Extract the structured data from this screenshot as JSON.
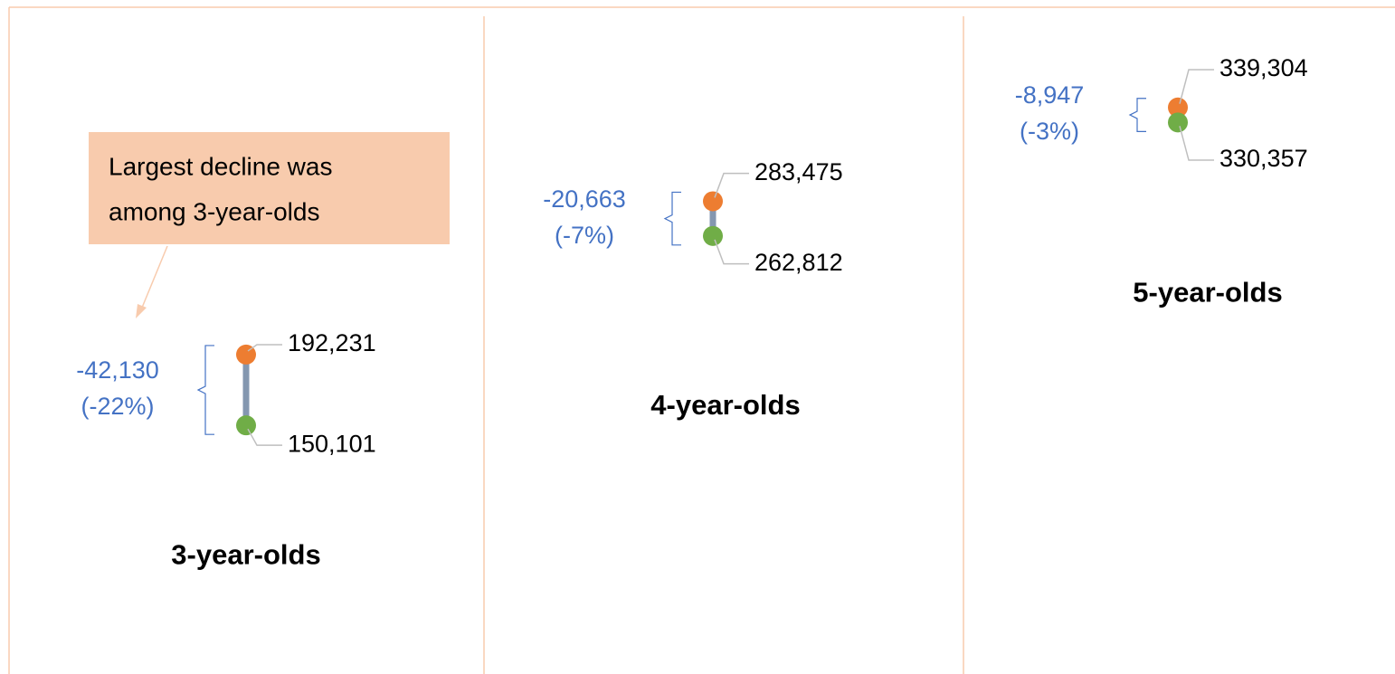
{
  "chart_data": {
    "type": "dumbbell",
    "categories": [
      "3-year-olds",
      "4-year-olds",
      "5-year-olds"
    ],
    "series": [
      {
        "color": "#ed7d31",
        "values": [
          192231,
          283475,
          339304
        ],
        "value_labels": [
          "192,231",
          "283,475",
          "339,304"
        ]
      },
      {
        "color": "#70ad47",
        "values": [
          150101,
          262812,
          330357
        ],
        "value_labels": [
          "150,101",
          "262,812",
          "330,357"
        ]
      }
    ],
    "changes": {
      "values": [
        -42130,
        -20663,
        -8947
      ],
      "value_labels": [
        "-42,130",
        "-20,663",
        "-8,947"
      ]
    },
    "change_percents": {
      "values": [
        -22,
        -7,
        -3
      ],
      "value_labels": [
        "(-22%)",
        "(-7%)",
        "(-3%)"
      ]
    },
    "change_color": "#4472c4",
    "connector_color": "#8497b0",
    "ylim": [
      0,
      400000
    ],
    "annotation": {
      "lines": [
        "Largest decline was",
        "among 3-year-olds"
      ],
      "fill": "#f8cbad"
    }
  }
}
